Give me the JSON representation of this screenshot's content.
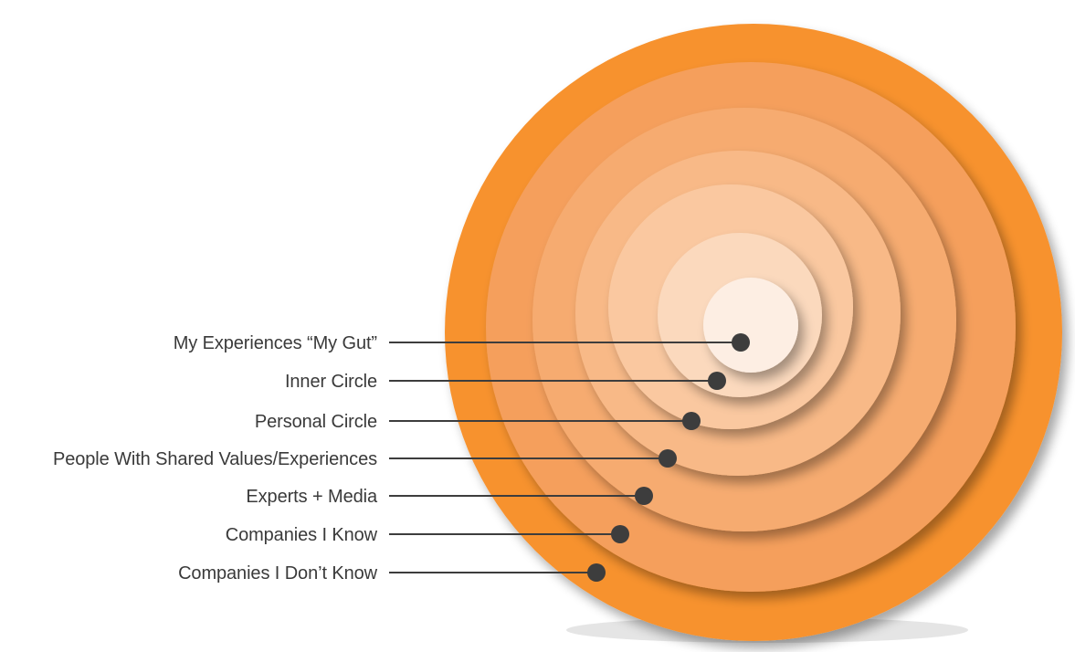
{
  "diagram": {
    "rings": [
      {
        "label": "My Experiences “My Gut”",
        "color": "#fdeee3"
      },
      {
        "label": "Inner Circle",
        "color": "#fbd9bd"
      },
      {
        "label": "Personal Circle",
        "color": "#fac8a0"
      },
      {
        "label": "People With Shared Values/Experiences",
        "color": "#f8b987"
      },
      {
        "label": "Experts + Media",
        "color": "#f6ab70"
      },
      {
        "label": "Companies I Know",
        "color": "#f59f5c"
      },
      {
        "label": "Companies I Don’t Know",
        "color": "#f7922f"
      }
    ],
    "leader_color": "#3d3d3d"
  }
}
